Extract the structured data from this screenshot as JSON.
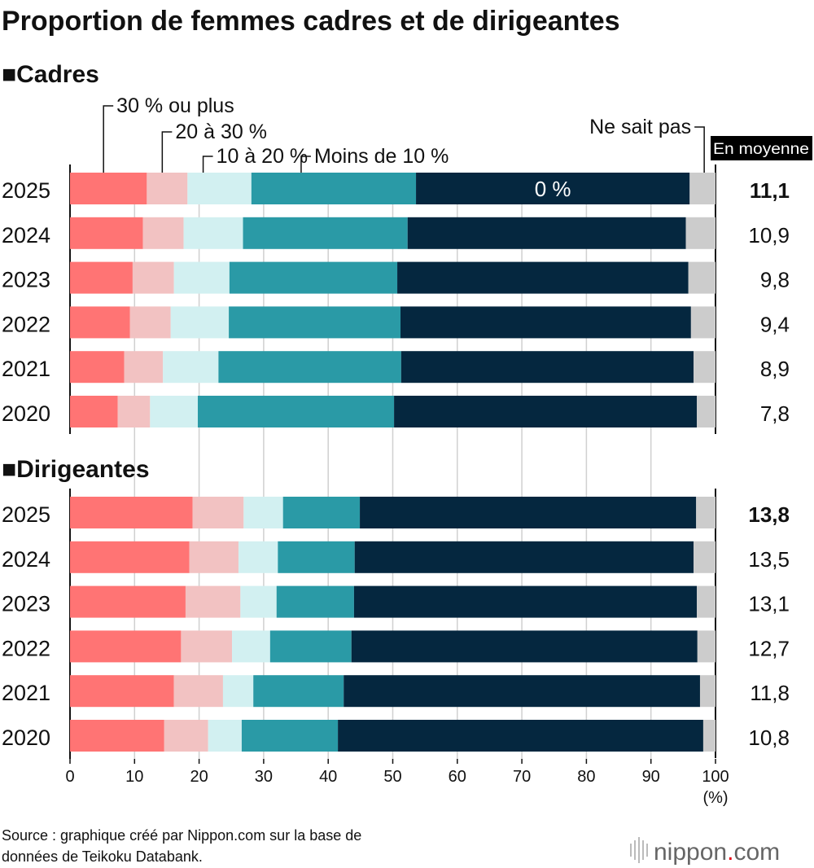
{
  "chart_data": {
    "type": "bar",
    "orientation": "horizontal",
    "stacked": true,
    "title": "Proportion de femmes cadres et de dirigeantes",
    "x_unit": "(%)",
    "xlim": [
      0,
      100
    ],
    "x_ticks": [
      "0",
      "10",
      "20",
      "30",
      "40",
      "50",
      "60",
      "70",
      "80",
      "90",
      "100"
    ],
    "grid": true,
    "average_header": "En moyenne",
    "series": [
      {
        "name": "30 % ou plus",
        "color": "#ff7474"
      },
      {
        "name": "20 à 30 %",
        "color": "#f2c2c2"
      },
      {
        "name": "10 à 20 %",
        "color": "#d2f0f1"
      },
      {
        "name": "Moins de 10 %",
        "color": "#2a9aa6"
      },
      {
        "name": "0 %",
        "color": "#05273f"
      },
      {
        "name": "Ne sait pas",
        "color": "#cccccc"
      }
    ],
    "panels": [
      {
        "title": "■Cadres",
        "categories": [
          "2025",
          "2024",
          "2023",
          "2022",
          "2021",
          "2020"
        ],
        "values": [
          [
            11.9,
            6.3,
            9.9,
            25.5,
            42.4,
            4.0
          ],
          [
            11.3,
            6.3,
            9.2,
            25.5,
            43.1,
            4.6
          ],
          [
            9.7,
            6.4,
            8.6,
            26.0,
            45.1,
            4.2
          ],
          [
            9.3,
            6.3,
            9.0,
            26.6,
            45.0,
            3.8
          ],
          [
            8.4,
            6.0,
            8.6,
            28.3,
            45.3,
            3.4
          ],
          [
            7.4,
            5.0,
            7.4,
            30.4,
            46.9,
            2.9
          ]
        ],
        "averages": [
          "11,1",
          "10,9",
          "9,8",
          "9,4",
          "8,9",
          "7,8"
        ]
      },
      {
        "title": "■Dirigeantes",
        "categories": [
          "2025",
          "2024",
          "2023",
          "2022",
          "2021",
          "2020"
        ],
        "values": [
          [
            19.0,
            7.9,
            6.1,
            11.9,
            52.1,
            3.0
          ],
          [
            18.5,
            7.6,
            6.1,
            11.9,
            52.5,
            3.4
          ],
          [
            17.9,
            8.5,
            5.6,
            12.0,
            53.1,
            2.9
          ],
          [
            17.2,
            7.9,
            5.9,
            12.6,
            53.6,
            2.8
          ],
          [
            16.1,
            7.6,
            4.7,
            14.0,
            55.2,
            2.4
          ],
          [
            14.6,
            6.8,
            5.2,
            14.9,
            56.6,
            1.9
          ]
        ],
        "averages": [
          "13,8",
          "13,5",
          "13,1",
          "12,7",
          "11,8",
          "10,8"
        ]
      }
    ]
  },
  "source": [
    "Source : graphique créé par Nippon.com sur la base de",
    "données de Teikoku Databank."
  ],
  "logo": {
    "text_main": "nippon",
    "text_dot": ".",
    "text_tld": "com",
    "dot_color": "#e60012"
  }
}
